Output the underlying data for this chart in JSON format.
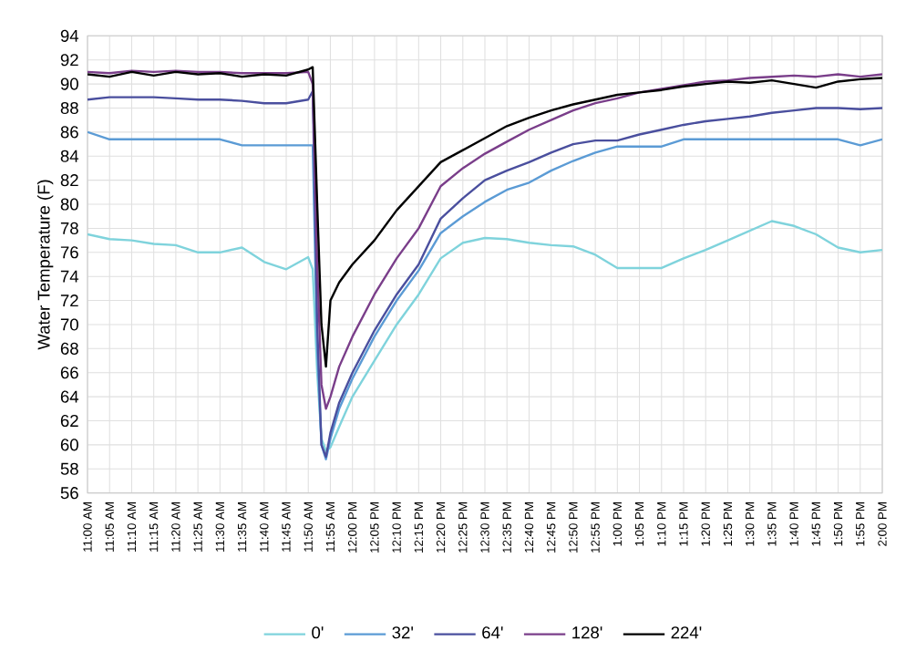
{
  "chart_data": {
    "type": "line",
    "ylabel": "Water Temperature (F)",
    "x": [
      11,
      11.083,
      11.167,
      11.25,
      11.333,
      11.417,
      11.5,
      11.583,
      11.667,
      11.75,
      11.833,
      11.85,
      11.867,
      11.883,
      11.9,
      11.917,
      11.95,
      12,
      12.083,
      12.167,
      12.25,
      12.333,
      12.417,
      12.5,
      12.583,
      12.667,
      12.75,
      12.833,
      12.917,
      13,
      13.083,
      13.167,
      13.25,
      13.333,
      13.417,
      13.5,
      13.583,
      13.667,
      13.75,
      13.833,
      13.917,
      14
    ],
    "series": [
      {
        "name": "0'",
        "color": "#7fd3dc",
        "values": [
          77.5,
          77.1,
          77.0,
          76.7,
          76.6,
          76.0,
          76.0,
          76.4,
          75.2,
          74.6,
          75.6,
          74.6,
          66,
          60.5,
          59.5,
          59.8,
          61.5,
          64,
          67,
          70,
          72.5,
          75.5,
          76.8,
          77.2,
          77.1,
          76.8,
          76.6,
          76.5,
          75.8,
          74.7,
          74.7,
          74.7,
          75.5,
          76.2,
          77,
          77.8,
          78.6,
          78.2,
          77.5,
          76.4,
          76.0,
          76.2
        ]
      },
      {
        "name": "32'",
        "color": "#5b9bd5",
        "values": [
          86,
          85.4,
          85.4,
          85.4,
          85.4,
          85.4,
          85.4,
          84.9,
          84.9,
          84.9,
          84.9,
          84.9,
          68,
          60,
          58.8,
          60.5,
          63,
          65.5,
          69,
          72,
          74.5,
          77.6,
          79,
          80.2,
          81.2,
          81.8,
          82.8,
          83.6,
          84.3,
          84.8,
          84.8,
          84.8,
          85.4,
          85.4,
          85.4,
          85.4,
          85.4,
          85.4,
          85.4,
          85.4,
          84.9,
          85.4
        ]
      },
      {
        "name": "64'",
        "color": "#4a4f9e",
        "values": [
          88.7,
          88.9,
          88.9,
          88.9,
          88.8,
          88.7,
          88.7,
          88.6,
          88.4,
          88.4,
          88.7,
          89.4,
          70,
          60,
          59,
          61,
          63.5,
          66,
          69.5,
          72.5,
          75,
          78.8,
          80.5,
          82,
          82.8,
          83.5,
          84.3,
          85,
          85.3,
          85.3,
          85.8,
          86.2,
          86.6,
          86.9,
          87.1,
          87.3,
          87.6,
          87.8,
          88,
          88,
          87.9,
          88
        ]
      },
      {
        "name": "128'",
        "color": "#7a3e8a",
        "values": [
          91,
          90.9,
          91.1,
          91,
          91.1,
          91,
          91,
          90.9,
          90.9,
          90.9,
          91,
          90,
          75,
          65,
          63,
          64,
          66.5,
          69,
          72.5,
          75.5,
          78,
          81.5,
          83,
          84.2,
          85.2,
          86.2,
          87,
          87.8,
          88.4,
          88.8,
          89.3,
          89.6,
          89.9,
          90.2,
          90.3,
          90.5,
          90.6,
          90.7,
          90.6,
          90.8,
          90.6,
          90.8
        ]
      },
      {
        "name": "224'",
        "color": "#000000",
        "values": [
          90.8,
          90.6,
          91.0,
          90.7,
          91.0,
          90.8,
          90.9,
          90.6,
          90.8,
          90.7,
          91.2,
          91.4,
          80,
          70,
          66.5,
          72,
          73.5,
          75,
          77,
          79.5,
          81.5,
          83.5,
          84.5,
          85.5,
          86.5,
          87.2,
          87.8,
          88.3,
          88.7,
          89.1,
          89.3,
          89.5,
          89.8,
          90.0,
          90.2,
          90.1,
          90.3,
          90.0,
          89.7,
          90.2,
          90.4,
          90.5
        ]
      }
    ],
    "xlim": [
      11,
      14
    ],
    "xticks": [
      {
        "value": 11,
        "label": "11:00 AM"
      },
      {
        "value": 11.0833,
        "label": "11:05 AM"
      },
      {
        "value": 11.1667,
        "label": "11:10 AM"
      },
      {
        "value": 11.25,
        "label": "11:15 AM"
      },
      {
        "value": 11.3333,
        "label": "11:20 AM"
      },
      {
        "value": 11.4167,
        "label": "11:25 AM"
      },
      {
        "value": 11.5,
        "label": "11:30 AM"
      },
      {
        "value": 11.5833,
        "label": "11:35 AM"
      },
      {
        "value": 11.6667,
        "label": "11:40 AM"
      },
      {
        "value": 11.75,
        "label": "11:45 AM"
      },
      {
        "value": 11.8333,
        "label": "11:50 AM"
      },
      {
        "value": 11.9167,
        "label": "11:55 AM"
      },
      {
        "value": 12,
        "label": "12:00 PM"
      },
      {
        "value": 12.0833,
        "label": "12:05 PM"
      },
      {
        "value": 12.1667,
        "label": "12:10 PM"
      },
      {
        "value": 12.25,
        "label": "12:15 PM"
      },
      {
        "value": 12.3333,
        "label": "12:20 PM"
      },
      {
        "value": 12.4167,
        "label": "12:25 PM"
      },
      {
        "value": 12.5,
        "label": "12:30 PM"
      },
      {
        "value": 12.5833,
        "label": "12:35 PM"
      },
      {
        "value": 12.6667,
        "label": "12:40 PM"
      },
      {
        "value": 12.75,
        "label": "12:45 PM"
      },
      {
        "value": 12.8333,
        "label": "12:50 PM"
      },
      {
        "value": 12.9167,
        "label": "12:55 PM"
      },
      {
        "value": 13,
        "label": "1:00 PM"
      },
      {
        "value": 13.0833,
        "label": "1:05 PM"
      },
      {
        "value": 13.1667,
        "label": "1:10 PM"
      },
      {
        "value": 13.25,
        "label": "1:15 PM"
      },
      {
        "value": 13.3333,
        "label": "1:20 PM"
      },
      {
        "value": 13.4167,
        "label": "1:25 PM"
      },
      {
        "value": 13.5,
        "label": "1:30 PM"
      },
      {
        "value": 13.5833,
        "label": "1:35 PM"
      },
      {
        "value": 13.6667,
        "label": "1:40 PM"
      },
      {
        "value": 13.75,
        "label": "1:45 PM"
      },
      {
        "value": 13.8333,
        "label": "1:50 PM"
      },
      {
        "value": 13.9167,
        "label": "1:55 PM"
      },
      {
        "value": 14,
        "label": "2:00 PM"
      }
    ],
    "ylim": [
      56,
      94
    ],
    "yticks": [
      56,
      58,
      60,
      62,
      64,
      66,
      68,
      70,
      72,
      74,
      76,
      78,
      80,
      82,
      84,
      86,
      88,
      90,
      92,
      94
    ],
    "grid": true,
    "legend": "bottom"
  }
}
